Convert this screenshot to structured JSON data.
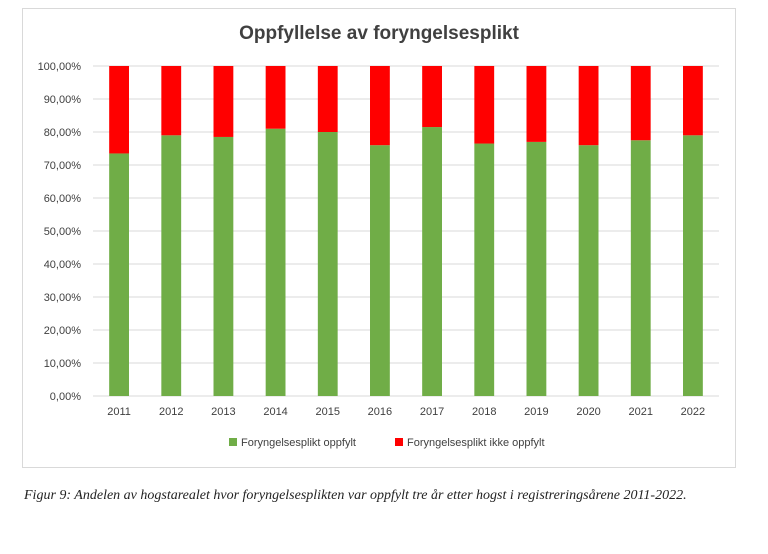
{
  "colors": {
    "fulfilled": "#70ad47",
    "not_fulfilled": "#ff0000",
    "grid": "#d9d9d9",
    "text": "#404040"
  },
  "chart_data": {
    "type": "bar",
    "stacked": true,
    "title": "Oppfyllelse av foryngelsesplikt",
    "xlabel": "",
    "ylabel": "",
    "ylim": [
      0,
      100
    ],
    "y_tick_labels": [
      "0,00%",
      "10,00%",
      "20,00%",
      "30,00%",
      "40,00%",
      "50,00%",
      "60,00%",
      "70,00%",
      "80,00%",
      "90,00%",
      "100,00%"
    ],
    "categories": [
      "2011",
      "2012",
      "2013",
      "2014",
      "2015",
      "2016",
      "2017",
      "2018",
      "2019",
      "2020",
      "2021",
      "2022"
    ],
    "series": [
      {
        "name": "Foryngelsesplikt oppfylt",
        "color": "#70ad47",
        "values": [
          73.5,
          79,
          78.5,
          81,
          80,
          76,
          81.5,
          76.5,
          77,
          76,
          77.5,
          79
        ]
      },
      {
        "name": "Foryngelsesplikt ikke oppfylt",
        "color": "#ff0000",
        "values": [
          26.5,
          21,
          21.5,
          19,
          20,
          24,
          18.5,
          23.5,
          23,
          24,
          22.5,
          21
        ]
      }
    ],
    "grid": true,
    "legend_position": "bottom"
  },
  "caption": "Figur 9: Andelen av hogstarealet hvor foryngelsesplikten var oppfylt tre år etter hogst i registreringsårene 2011-2022."
}
